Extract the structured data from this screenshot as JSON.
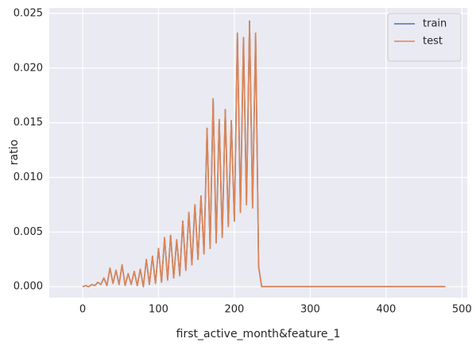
{
  "chart_data": {
    "type": "line",
    "x_label": "first_active_month&feature_1",
    "y_label": "ratio",
    "x": [
      0,
      4,
      8,
      12,
      16,
      20,
      24,
      28,
      32,
      36,
      40,
      44,
      48,
      52,
      56,
      60,
      64,
      68,
      72,
      76,
      80,
      84,
      88,
      92,
      96,
      100,
      104,
      108,
      112,
      116,
      120,
      124,
      128,
      132,
      136,
      140,
      144,
      148,
      152,
      156,
      160,
      164,
      168,
      172,
      176,
      180,
      184,
      188,
      192,
      196,
      200,
      204,
      208,
      212,
      216,
      220,
      224,
      228,
      232,
      236,
      478
    ],
    "series": [
      {
        "name": "train",
        "color": "#4c72b0",
        "values": [
          0,
          0.0001,
          0,
          0.0002,
          0.0001,
          0.0004,
          0.0002,
          0.0008,
          0.0001,
          0.0017,
          0.0003,
          0.0015,
          0.0002,
          0.002,
          0.0001,
          0.0012,
          0.0002,
          0.0014,
          0.0001,
          0.0016,
          0,
          0.0025,
          0.0002,
          0.0028,
          0.0003,
          0.0035,
          0.0004,
          0.0045,
          0.0006,
          0.0047,
          0.0008,
          0.0043,
          0.001,
          0.006,
          0.0015,
          0.0068,
          0.002,
          0.0075,
          0.0025,
          0.0083,
          0.003,
          0.0145,
          0.0035,
          0.0172,
          0.004,
          0.0153,
          0.0045,
          0.0162,
          0.0055,
          0.0152,
          0.006,
          0.0232,
          0.0068,
          0.0228,
          0.0075,
          0.0243,
          0.0072,
          0.0232,
          0.0018,
          0,
          0
        ]
      },
      {
        "name": "test",
        "color": "#dd8452",
        "values": [
          0,
          0.0001,
          0,
          0.0002,
          0.0001,
          0.0004,
          0.0002,
          0.0008,
          0.0001,
          0.0017,
          0.0003,
          0.0015,
          0.0002,
          0.002,
          0.0001,
          0.0012,
          0.0002,
          0.0014,
          0.0001,
          0.0016,
          0,
          0.0025,
          0.0002,
          0.0028,
          0.0003,
          0.0035,
          0.0004,
          0.0045,
          0.0006,
          0.0047,
          0.0008,
          0.0043,
          0.001,
          0.006,
          0.0015,
          0.0068,
          0.002,
          0.0075,
          0.0025,
          0.0083,
          0.003,
          0.0145,
          0.0035,
          0.0172,
          0.004,
          0.0153,
          0.0045,
          0.0162,
          0.0055,
          0.0152,
          0.006,
          0.0232,
          0.0068,
          0.0228,
          0.0075,
          0.0243,
          0.0072,
          0.0232,
          0.0018,
          0,
          0
        ]
      }
    ],
    "xlim": [
      -44,
      507
    ],
    "xticks": [
      0,
      100,
      200,
      300,
      400,
      500
    ],
    "ylim": [
      -0.001,
      0.0255
    ],
    "yticks": [
      {
        "value": 0,
        "label": "0.000"
      },
      {
        "value": 0.005,
        "label": "0.005"
      },
      {
        "value": 0.01,
        "label": "0.010"
      },
      {
        "value": 0.015,
        "label": "0.015"
      },
      {
        "value": 0.02,
        "label": "0.020"
      },
      {
        "value": 0.025,
        "label": "0.025"
      }
    ],
    "grid": true,
    "legend_position": "upper-right"
  }
}
